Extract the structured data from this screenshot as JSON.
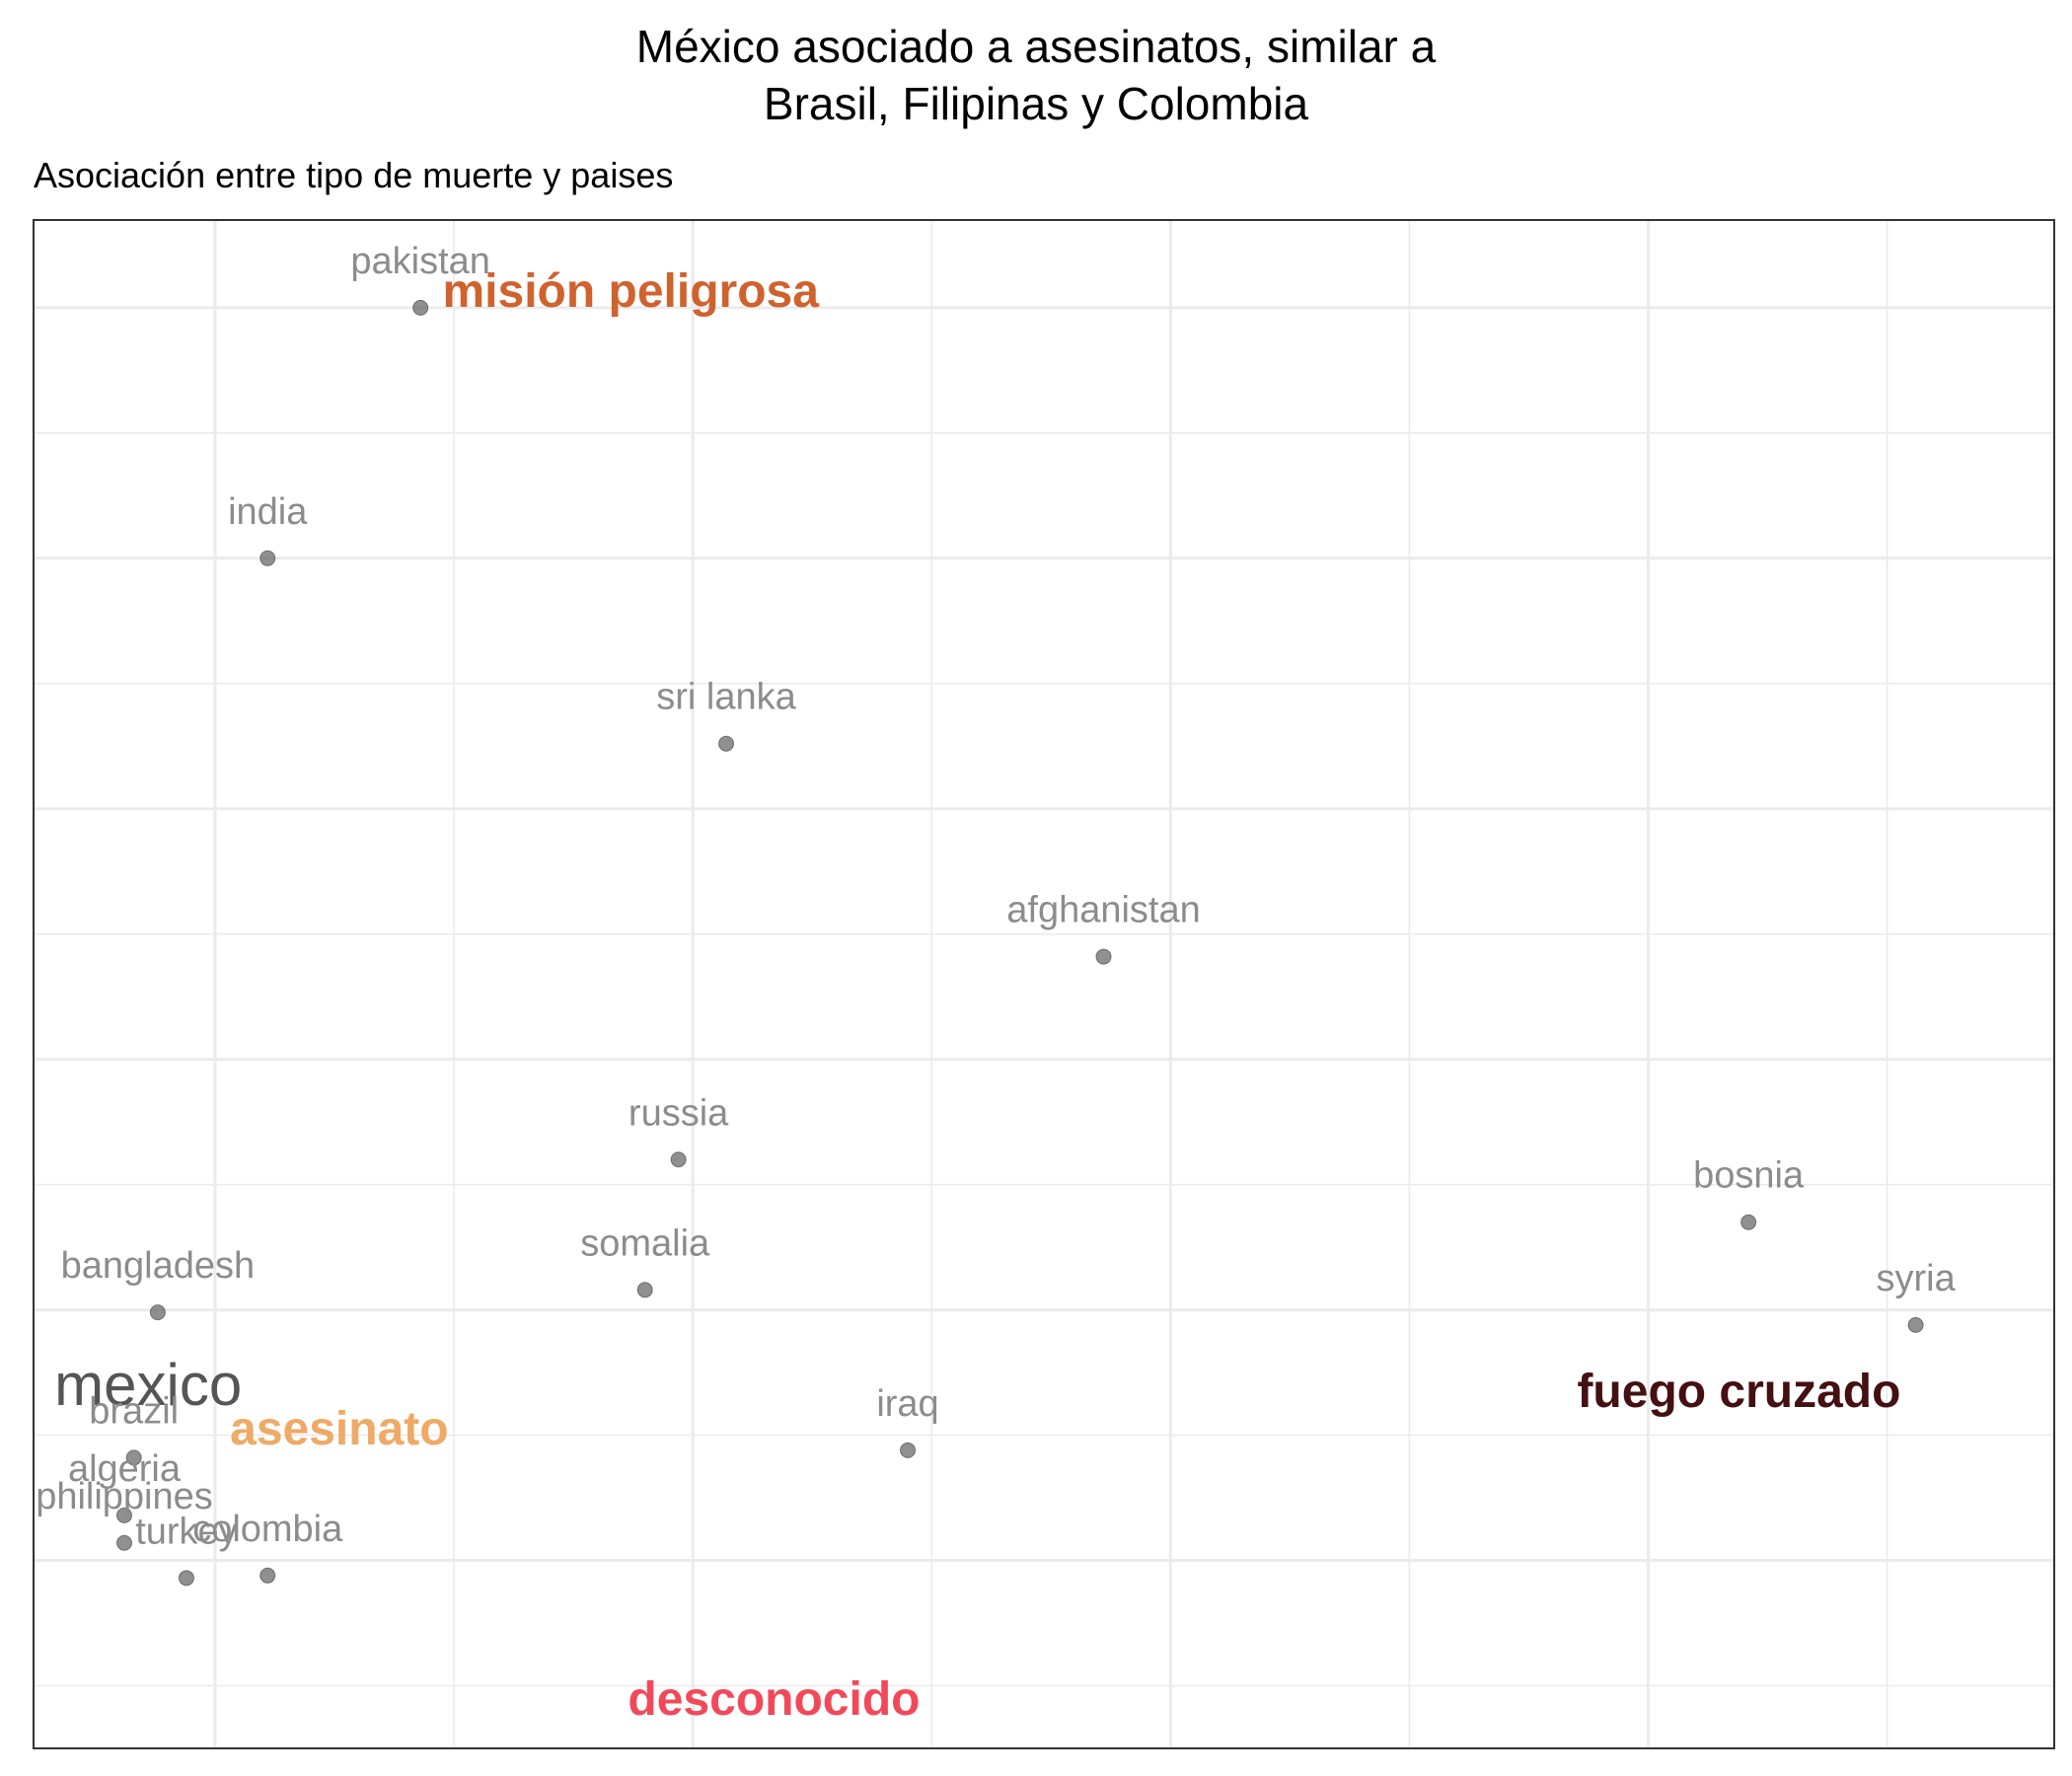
{
  "chart_data": {
    "type": "scatter",
    "title": "México asociado a asesinatos, similar a\nBrasil, Filipinas y Colombia",
    "subtitle": "Asociación entre tipo de muerte y paises",
    "xlabel": "",
    "ylabel": "",
    "xlim": [
      -0.38,
      3.85
    ],
    "ylim": [
      -0.75,
      5.35
    ],
    "grid": true,
    "countries": [
      {
        "name": "pakistan",
        "x": 0.43,
        "y": 5.0
      },
      {
        "name": "india",
        "x": 0.11,
        "y": 4.0
      },
      {
        "name": "sri lanka",
        "x": 1.07,
        "y": 3.26
      },
      {
        "name": "afghanistan",
        "x": 1.86,
        "y": 2.41
      },
      {
        "name": "russia",
        "x": 0.97,
        "y": 1.6
      },
      {
        "name": "somalia",
        "x": 0.9,
        "y": 1.08
      },
      {
        "name": "bosnia",
        "x": 3.21,
        "y": 1.35
      },
      {
        "name": "syria",
        "x": 3.56,
        "y": 0.94
      },
      {
        "name": "bangladesh",
        "x": -0.12,
        "y": 0.99
      },
      {
        "name": "mexico",
        "x": -0.14,
        "y": 0.7,
        "highlight": true
      },
      {
        "name": "brazil",
        "x": -0.17,
        "y": 0.41
      },
      {
        "name": "algeria",
        "x": -0.19,
        "y": 0.18
      },
      {
        "name": "philippines",
        "x": -0.19,
        "y": 0.07
      },
      {
        "name": "turkey",
        "x": -0.06,
        "y": -0.07
      },
      {
        "name": "colombia",
        "x": 0.11,
        "y": -0.06
      },
      {
        "name": "iraq",
        "x": 1.45,
        "y": 0.44
      }
    ],
    "categories": [
      {
        "name": "misión peligrosa",
        "x": 0.87,
        "y": 5.07,
        "color": "#d0622e"
      },
      {
        "name": "asesinato",
        "x": 0.26,
        "y": 0.53,
        "color": "#eeaa66"
      },
      {
        "name": "fuego cruzado",
        "x": 3.19,
        "y": 0.68,
        "color": "#441011"
      },
      {
        "name": "desconocido",
        "x": 1.17,
        "y": -0.55,
        "color": "#f2495a"
      }
    ]
  }
}
